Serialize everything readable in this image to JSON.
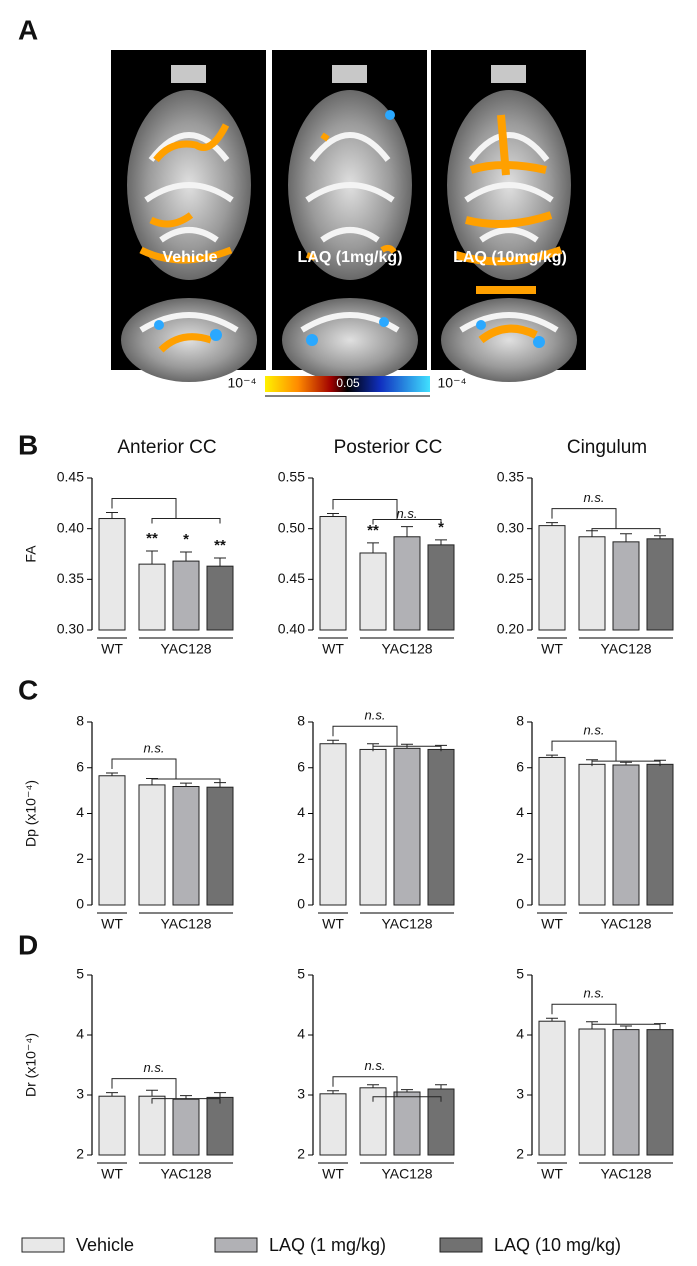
{
  "panel_labels": [
    "A",
    "B",
    "C",
    "D"
  ],
  "panel_a": {
    "image_labels": [
      "Vehicle",
      "LAQ (1mg/kg)",
      "LAQ (10mg/kg)"
    ],
    "colorbar_labels": [
      "10⁻⁴",
      "0.05",
      "10⁻⁴"
    ]
  },
  "bar_colors": [
    "#e8e8e8",
    "#e8e8e8",
    "#b1b1b5",
    "#717171"
  ],
  "legend": [
    {
      "name": "Vehicle",
      "color": "#e8e8e8"
    },
    {
      "name": "LAQ (1 mg/kg)",
      "color": "#b1b1b5"
    },
    {
      "name": "LAQ (10 mg/kg)",
      "color": "#717171"
    }
  ],
  "chart_data": [
    {
      "type": "bar",
      "title": "Anterior CC",
      "ylabel": "FA",
      "group_labels": [
        "WT",
        "YAC128"
      ],
      "values": [
        0.41,
        0.365,
        0.368,
        0.363
      ],
      "errors": [
        0.006,
        0.013,
        0.009,
        0.008
      ],
      "significance": [
        null,
        "**",
        "*",
        "**"
      ],
      "ylim": [
        0.3,
        0.45
      ],
      "yticks": [
        {
          "value": 0.3,
          "label": "0.30"
        },
        0.35,
        {
          "value": 0.4,
          "label": "0.40"
        },
        0.45
      ]
    },
    {
      "type": "bar",
      "title": "Posterior CC",
      "group_labels": [
        "WT",
        "YAC128"
      ],
      "values": [
        0.512,
        0.476,
        0.492,
        0.484
      ],
      "errors": [
        0.003,
        0.01,
        0.01,
        0.005
      ],
      "significance": [
        null,
        "**",
        "n.s.",
        "*"
      ],
      "ylim": [
        0.4,
        0.55
      ],
      "yticks": [
        {
          "value": 0.4,
          "label": "0.40"
        },
        0.45,
        {
          "value": 0.5,
          "label": "0.50"
        },
        0.55
      ]
    },
    {
      "type": "bar",
      "title": "Cingulum",
      "group_labels": [
        "WT",
        "YAC128"
      ],
      "bracket_label": "n.s.",
      "values": [
        0.303,
        0.292,
        0.287,
        0.29
      ],
      "errors": [
        0.003,
        0.006,
        0.008,
        0.003
      ],
      "ylim": [
        0.2,
        0.35
      ],
      "yticks": [
        {
          "value": 0.2,
          "label": "0.20"
        },
        0.25,
        {
          "value": 0.3,
          "label": "0.30"
        },
        0.35
      ]
    },
    {
      "type": "bar",
      "ylabel": "Dp (x10⁻⁴)",
      "group_labels": [
        "WT",
        "YAC128"
      ],
      "bracket_label": "n.s.",
      "values": [
        5.65,
        5.25,
        5.18,
        5.15
      ],
      "errors": [
        0.12,
        0.28,
        0.15,
        0.2
      ],
      "ylim": [
        0,
        8
      ],
      "yticks": [
        0,
        2,
        4,
        6,
        8
      ]
    },
    {
      "type": "bar",
      "group_labels": [
        "WT",
        "YAC128"
      ],
      "bracket_label": "n.s.",
      "values": [
        7.05,
        6.8,
        6.85,
        6.8
      ],
      "errors": [
        0.15,
        0.25,
        0.18,
        0.18
      ],
      "ylim": [
        0,
        8
      ],
      "yticks": [
        0,
        2,
        4,
        6,
        8
      ]
    },
    {
      "type": "bar",
      "group_labels": [
        "WT",
        "YAC128"
      ],
      "bracket_label": "n.s.",
      "values": [
        6.45,
        6.15,
        6.12,
        6.15
      ],
      "errors": [
        0.1,
        0.2,
        0.12,
        0.18
      ],
      "ylim": [
        0,
        8
      ],
      "yticks": [
        0,
        2,
        4,
        6,
        8
      ]
    },
    {
      "type": "bar",
      "ylabel": "Dr (x10⁻⁴)",
      "group_labels": [
        "WT",
        "YAC128"
      ],
      "bracket_label": "n.s.",
      "values": [
        2.98,
        2.98,
        2.93,
        2.96
      ],
      "errors": [
        0.06,
        0.1,
        0.06,
        0.08
      ],
      "ylim": [
        2,
        5
      ],
      "yticks": [
        2,
        3,
        4,
        5
      ]
    },
    {
      "type": "bar",
      "group_labels": [
        "WT",
        "YAC128"
      ],
      "bracket_label": "n.s.",
      "values": [
        3.02,
        3.12,
        3.05,
        3.1
      ],
      "errors": [
        0.05,
        0.05,
        0.04,
        0.07
      ],
      "ylim": [
        2,
        5
      ],
      "yticks": [
        2,
        3,
        4,
        5
      ]
    },
    {
      "type": "bar",
      "group_labels": [
        "WT",
        "YAC128"
      ],
      "bracket_label": "n.s.",
      "values": [
        4.23,
        4.1,
        4.09,
        4.09
      ],
      "errors": [
        0.05,
        0.12,
        0.06,
        0.1
      ],
      "ylim": [
        2,
        5
      ],
      "yticks": [
        2,
        3,
        4,
        5
      ]
    }
  ]
}
